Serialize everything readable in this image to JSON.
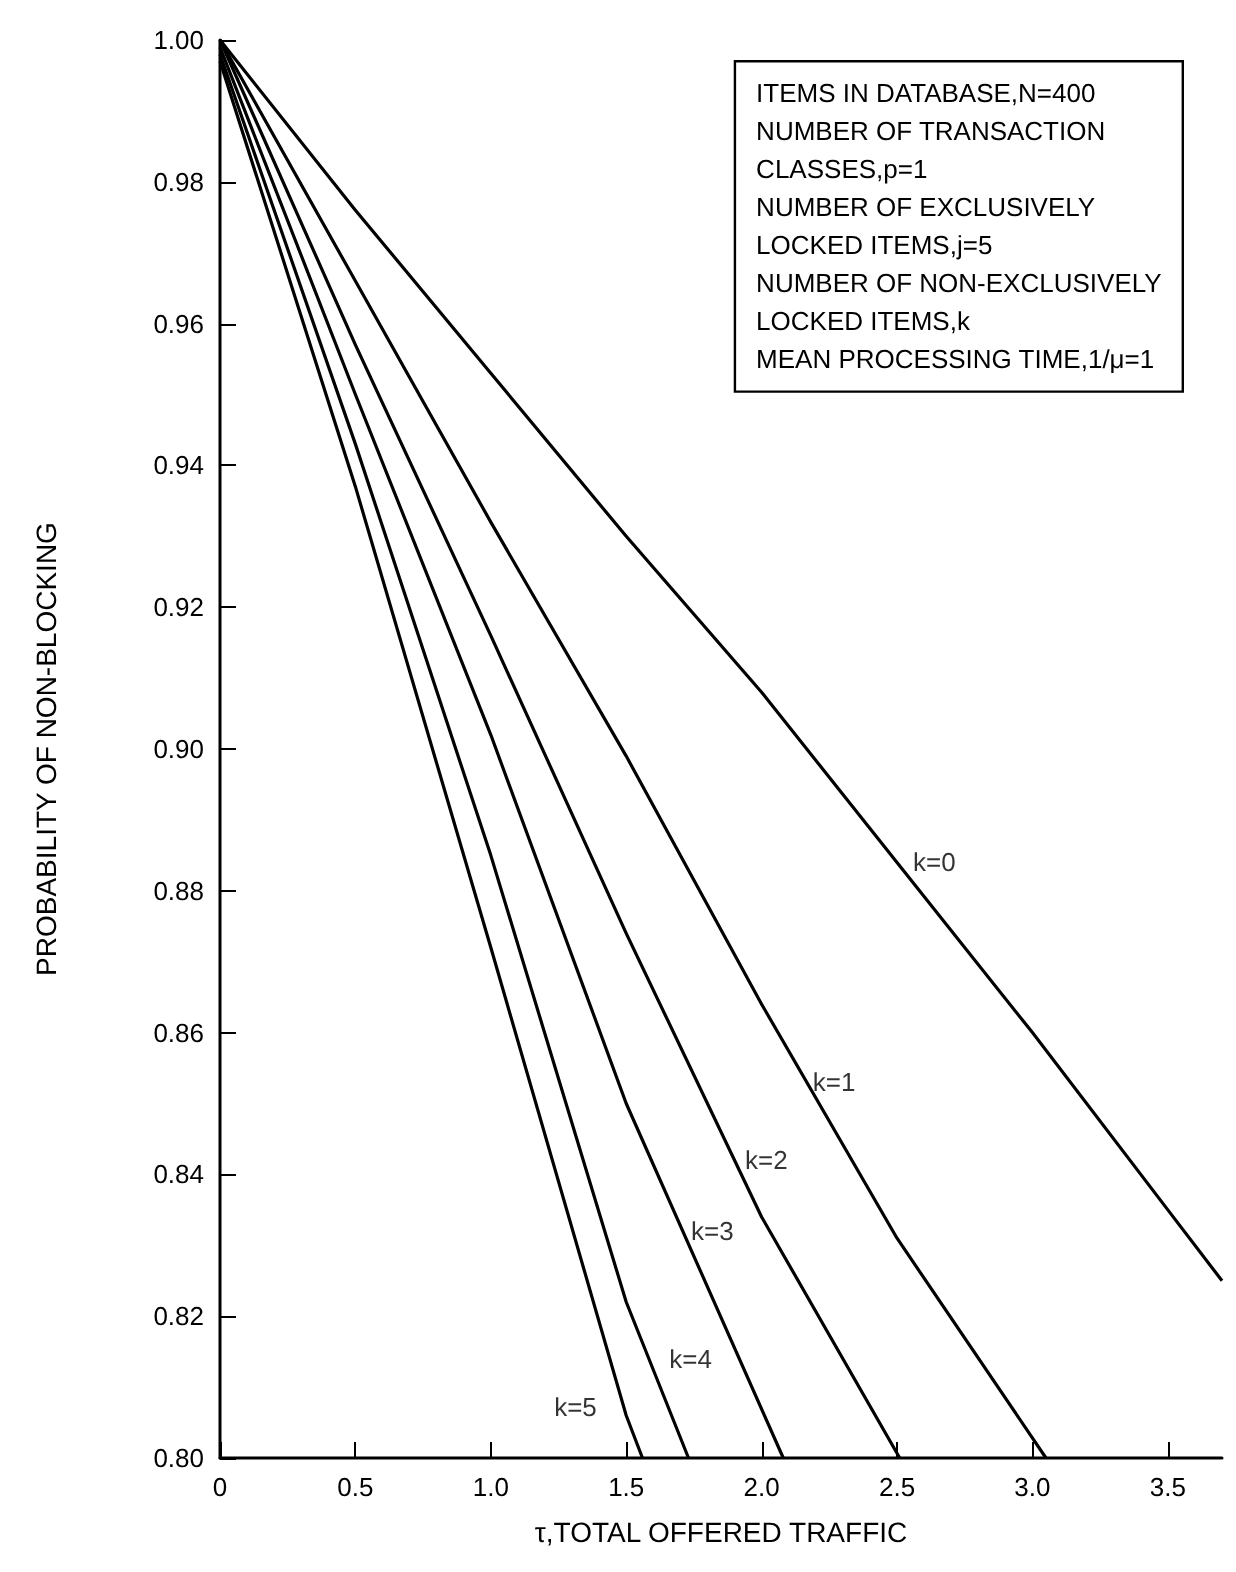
{
  "chart_data": {
    "type": "line",
    "xlabel": "τ,TOTAL OFFERED TRAFFIC",
    "ylabel": "PROBABILITY OF NON-BLOCKING",
    "xlim": [
      0,
      3.7
    ],
    "ylim": [
      0.8,
      1.0
    ],
    "xticks": [
      0,
      {
        "value": 0.5,
        "label": "0.5"
      },
      {
        "value": 1,
        "label": "1.0"
      },
      {
        "value": 1.5,
        "label": "1.5"
      },
      {
        "value": 2,
        "label": "2.0"
      },
      {
        "value": 2.5,
        "label": "2.5"
      },
      {
        "value": 3,
        "label": "3.0"
      },
      {
        "value": 3.5,
        "label": "3.5"
      }
    ],
    "yticks": [
      {
        "value": 0.8,
        "label": "0.80"
      },
      {
        "value": 0.82,
        "label": "0.82"
      },
      {
        "value": 0.84,
        "label": "0.84"
      },
      {
        "value": 0.86,
        "label": "0.86"
      },
      {
        "value": 0.88,
        "label": "0.88"
      },
      {
        "value": 0.9,
        "label": "0.90"
      },
      {
        "value": 0.92,
        "label": "0.92"
      },
      {
        "value": 0.94,
        "label": "0.94"
      },
      {
        "value": 0.96,
        "label": "0.96"
      },
      {
        "value": 0.98,
        "label": "0.98"
      },
      {
        "value": 1,
        "label": "1.00"
      }
    ],
    "grid": false,
    "marker": "none",
    "line_style": "solid",
    "series": [
      {
        "color": "#000000",
        "x": [
          0,
          0.5,
          1,
          1.5,
          2,
          2.5,
          3,
          3.5,
          3.7
        ],
        "values": [
          1.0,
          0.976,
          0.953,
          0.93,
          0.908,
          0.884,
          0.86,
          0.835,
          0.825
        ]
      },
      {
        "color": "#000000",
        "x": [
          0,
          0.5,
          1,
          1.5,
          2,
          2.5,
          3.05
        ],
        "values": [
          1.0,
          0.966,
          0.932,
          0.899,
          0.864,
          0.831,
          0.8
        ]
      },
      {
        "color": "#000000",
        "x": [
          0,
          0.5,
          1,
          1.5,
          2,
          2.51
        ],
        "values": [
          1.0,
          0.957,
          0.916,
          0.874,
          0.834,
          0.8
        ]
      },
      {
        "color": "#000000",
        "x": [
          0,
          0.5,
          1,
          1.5,
          2.08
        ],
        "values": [
          0.999,
          0.95,
          0.902,
          0.85,
          0.8
        ]
      },
      {
        "color": "#000000",
        "x": [
          0,
          0.5,
          1,
          1.5,
          1.73
        ],
        "values": [
          0.998,
          0.943,
          0.885,
          0.822,
          0.8
        ]
      },
      {
        "color": "#000000",
        "x": [
          0,
          0.5,
          1,
          1.5,
          1.56
        ],
        "values": [
          0.997,
          0.937,
          0.872,
          0.806,
          0.8
        ]
      }
    ],
    "annotations": [
      "ITEMS IN DATABASE,N=400\nNUMBER OF TRANSACTION\nCLASSES,p=1\nNUMBER OF EXCLUSIVELY\nLOCKED ITEMS,j=5\nNUMBER OF NON-EXCLUSIVELY\nLOCKED ITEMS,k\nMEAN PROCESSING TIME,1/μ=1",
      {
        "text": "k=0",
        "x": 2.5,
        "y": 0.884
      },
      {
        "text": "k=1",
        "x": 2.13,
        "y": 0.853
      },
      {
        "text": "k=2",
        "x": 1.88,
        "y": 0.842
      },
      {
        "text": "k=3",
        "x": 1.68,
        "y": 0.832
      },
      {
        "text": "k=4",
        "x": 1.6,
        "y": 0.814
      },
      {
        "text": "k=5",
        "x": 1.48,
        "y": 0.809
      }
    ]
  }
}
